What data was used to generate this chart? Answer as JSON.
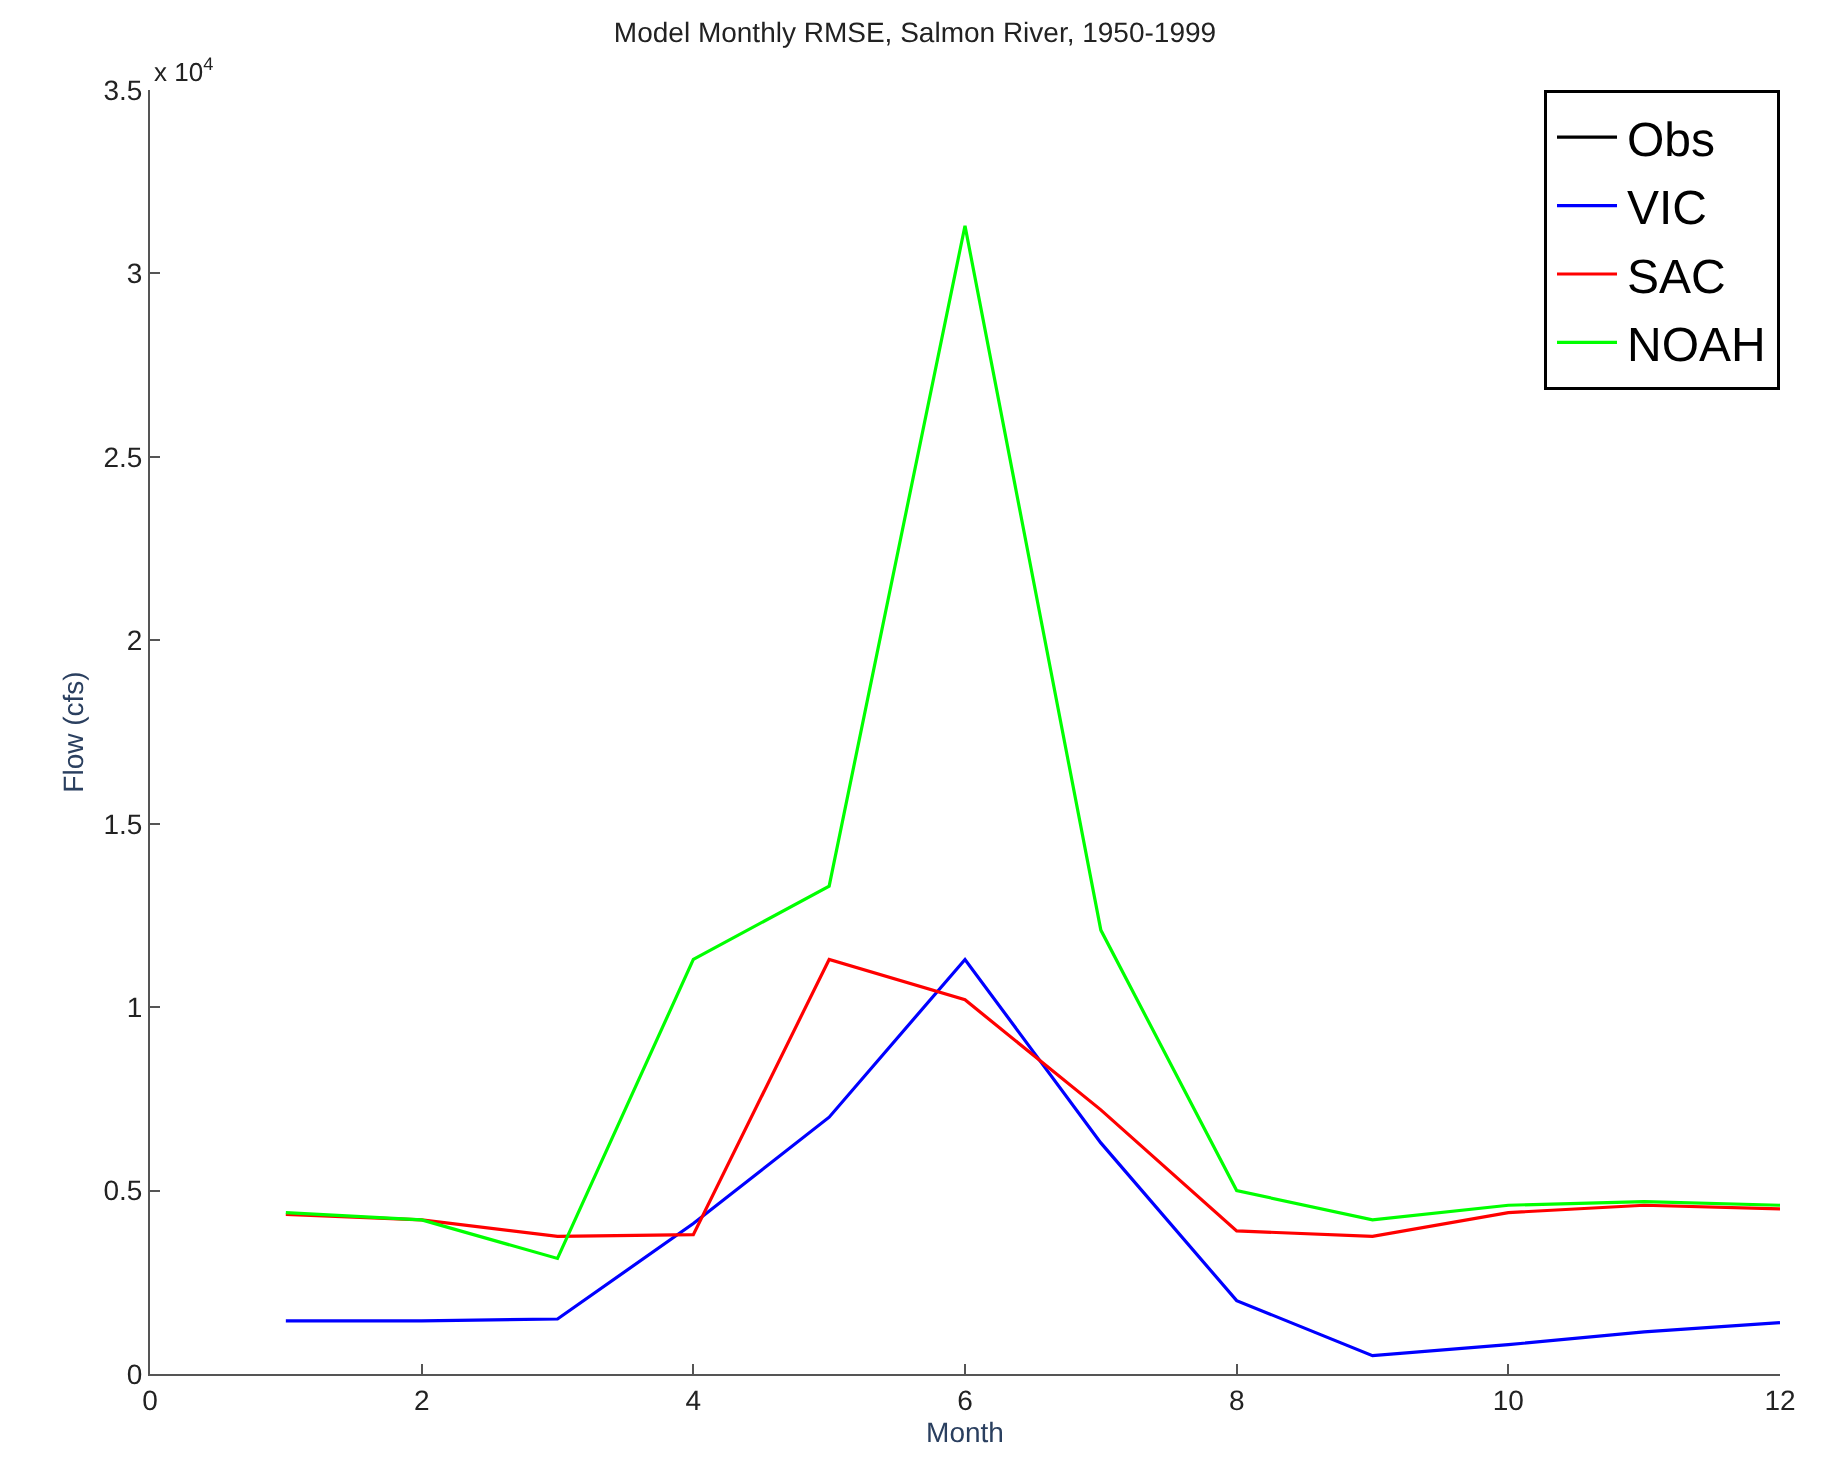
{
  "chart_data": {
    "type": "line",
    "title": "Model Monthly RMSE, Salmon River, 1950-1999",
    "xlabel": "Month",
    "ylabel": "Flow (cfs)",
    "annotations": [
      "x 10$^{4}$"
    ],
    "x": [
      1,
      2,
      3,
      4,
      5,
      6,
      7,
      8,
      9,
      10,
      11,
      12
    ],
    "series": [
      {
        "name": "Obs",
        "color": "#000000",
        "values": [
          null,
          null,
          null,
          null,
          null,
          null,
          null,
          null,
          null,
          null,
          null,
          null
        ]
      },
      {
        "name": "VIC",
        "color": "#0000ff",
        "values": [
          0.145,
          0.145,
          0.15,
          0.41,
          0.7,
          1.13,
          0.63,
          0.2,
          0.05,
          0.08,
          0.115,
          0.14
        ]
      },
      {
        "name": "SAC",
        "color": "#ff0000",
        "values": [
          0.435,
          0.42,
          0.375,
          0.38,
          1.13,
          1.02,
          0.72,
          0.39,
          0.375,
          0.44,
          0.46,
          0.45
        ]
      },
      {
        "name": "NOAH",
        "color": "#00ff00",
        "values": [
          0.44,
          0.42,
          0.315,
          1.13,
          1.33,
          3.13,
          1.21,
          0.5,
          0.42,
          0.46,
          0.47,
          0.46
        ]
      }
    ],
    "xlim": [
      0,
      12
    ],
    "xticks": [
      0,
      2,
      4,
      6,
      8,
      10,
      12
    ],
    "ylim": [
      0,
      3.5
    ],
    "yticks": [
      0,
      0.5,
      1,
      1.5,
      2,
      2.5,
      3,
      3.5
    ],
    "legend": "top right",
    "marker": "none",
    "line_style": "solid"
  }
}
